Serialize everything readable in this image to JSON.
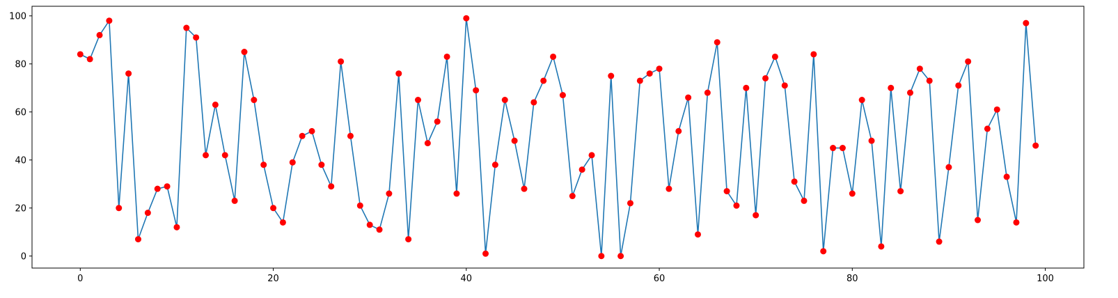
{
  "chart_data": {
    "type": "line",
    "title": "",
    "xlabel": "",
    "ylabel": "",
    "xlim": [
      -5,
      104
    ],
    "ylim": [
      -5,
      104
    ],
    "xticks": [
      0,
      20,
      40,
      60,
      80,
      100
    ],
    "yticks": [
      0,
      20,
      40,
      60,
      80,
      100
    ],
    "grid": false,
    "series": [
      {
        "line_color": "#1f77b4",
        "marker_color": "#ff0000",
        "x": [
          0,
          1,
          2,
          3,
          4,
          5,
          6,
          7,
          8,
          9,
          10,
          11,
          12,
          13,
          14,
          15,
          16,
          17,
          18,
          19,
          20,
          21,
          22,
          23,
          24,
          25,
          26,
          27,
          28,
          29,
          30,
          31,
          32,
          33,
          34,
          35,
          36,
          37,
          38,
          39,
          40,
          41,
          42,
          43,
          44,
          45,
          46,
          47,
          48,
          49,
          50,
          51,
          52,
          53,
          54,
          55,
          56,
          57,
          58,
          59,
          60,
          61,
          62,
          63,
          64,
          65,
          66,
          67,
          68,
          69,
          70,
          71,
          72,
          73,
          74,
          75,
          76,
          77,
          78,
          79,
          80,
          81,
          82,
          83,
          84,
          85,
          86,
          87,
          88,
          89,
          90,
          91,
          92,
          93,
          94,
          95,
          96,
          97,
          98,
          99
        ],
        "y": [
          84,
          82,
          92,
          98,
          20,
          76,
          7,
          18,
          28,
          29,
          12,
          95,
          91,
          42,
          63,
          42,
          23,
          85,
          65,
          38,
          20,
          14,
          39,
          50,
          52,
          38,
          29,
          81,
          50,
          21,
          13,
          11,
          26,
          76,
          7,
          65,
          47,
          56,
          83,
          26,
          99,
          69,
          1,
          38,
          65,
          48,
          28,
          64,
          73,
          83,
          67,
          25,
          36,
          42,
          0,
          75,
          0,
          22,
          73,
          76,
          78,
          28,
          52,
          66,
          9,
          68,
          89,
          27,
          21,
          70,
          17,
          74,
          83,
          71,
          31,
          23,
          84,
          2,
          45,
          45,
          26,
          65,
          48,
          4,
          70,
          27,
          68,
          78,
          73,
          6,
          37,
          71,
          81,
          15,
          53,
          61,
          33,
          14,
          97,
          46
        ]
      }
    ]
  }
}
